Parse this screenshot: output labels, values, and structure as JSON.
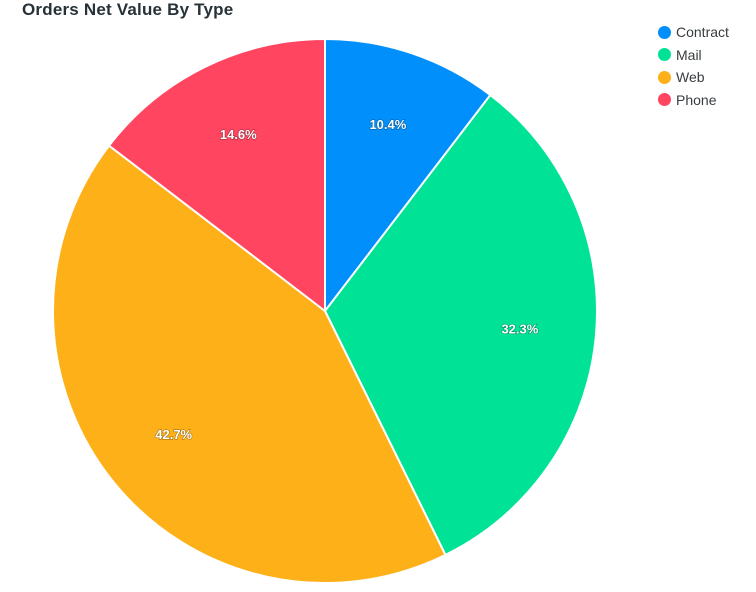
{
  "chart_data": {
    "type": "pie",
    "title": "Orders Net Value By Type",
    "categories": [
      "Contract",
      "Mail",
      "Web",
      "Phone"
    ],
    "values": [
      10.4,
      32.3,
      42.7,
      14.6
    ],
    "labels": [
      "10.4%",
      "32.3%",
      "42.7%",
      "14.6%"
    ],
    "colors": [
      "#008FFB",
      "#00E396",
      "#FEB019",
      "#FF4560"
    ],
    "legend_position": "top-right"
  }
}
